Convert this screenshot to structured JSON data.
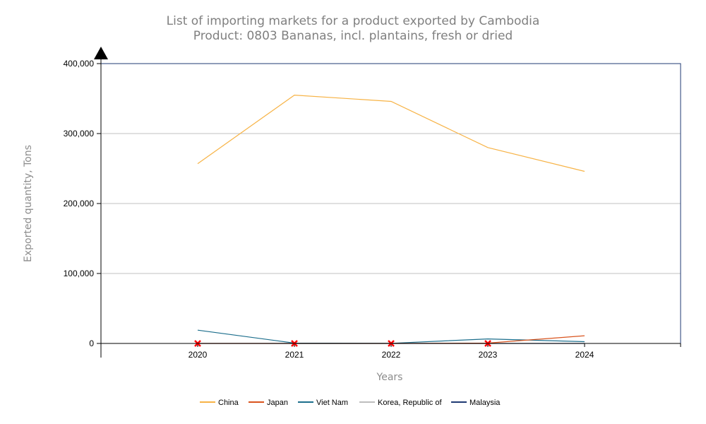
{
  "chart_data": {
    "type": "line",
    "title": "List of importing markets for a product exported by Cambodia",
    "subtitle": "Product: 0803 Bananas, incl. plantains, fresh or dried",
    "xlabel": "Years",
    "ylabel": "Exported quantity, Tons",
    "x": [
      "2020",
      "2021",
      "2022",
      "2023",
      "2024"
    ],
    "ylim": [
      0,
      400000
    ],
    "yticks": [
      0,
      100000,
      200000,
      300000,
      400000
    ],
    "ytick_labels": [
      "0",
      "100,000",
      "200,000",
      "300,000",
      "400,000"
    ],
    "grid": "horizontal",
    "legend_position": "bottom",
    "series": [
      {
        "name": "China",
        "color": "#f7b346",
        "values": [
          257000,
          355000,
          346000,
          280000,
          246000
        ]
      },
      {
        "name": "Japan",
        "color": "#d9541e",
        "values": [
          0,
          0,
          0,
          500,
          11000
        ]
      },
      {
        "name": "Viet Nam",
        "color": "#1c6e8c",
        "values": [
          19000,
          500,
          200,
          6500,
          2500
        ]
      },
      {
        "name": "Korea, Republic of",
        "color": "#bdbdbd",
        "values": [
          0,
          0,
          0,
          0,
          0
        ]
      },
      {
        "name": "Malaysia",
        "color": "#1f3a73",
        "values": [
          0,
          0,
          0,
          0,
          0
        ]
      }
    ],
    "markers": {
      "x": [
        "2020",
        "2021",
        "2022",
        "2023"
      ],
      "y": 0,
      "color": "#ff0000",
      "shape": "x"
    }
  }
}
